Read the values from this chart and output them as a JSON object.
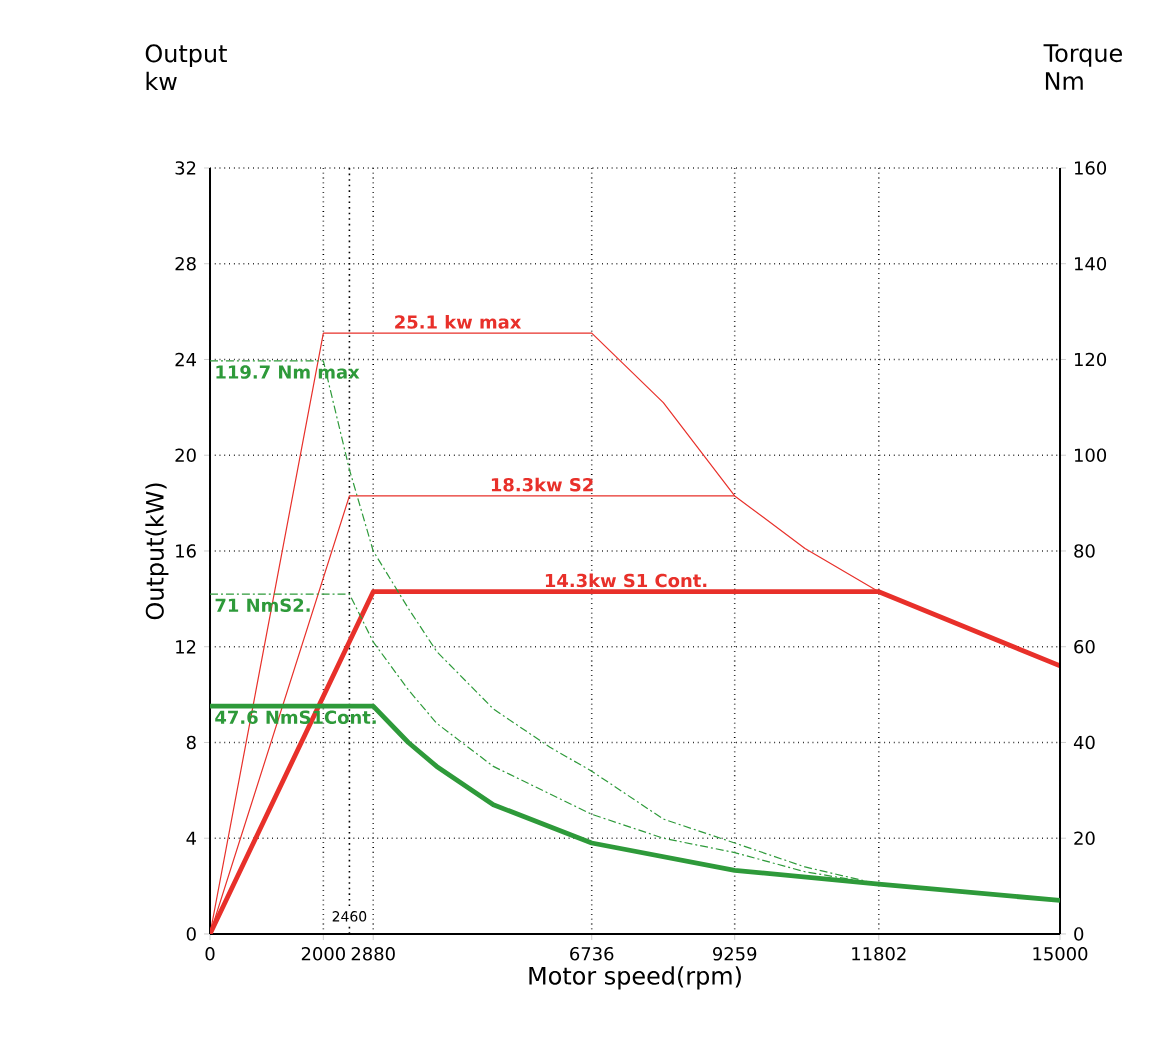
{
  "chart_data": {
    "type": "line",
    "xlabel": "Motor speed(rpm)",
    "ylabel": "Output(kW)",
    "y2label": "Torque Nm",
    "annotations": [
      "Output kw"
    ],
    "xlim": [
      0,
      15000
    ],
    "xticks": [
      0,
      2000,
      2880,
      6736,
      9259,
      11802,
      15000
    ],
    "ylim": [
      0,
      32
    ],
    "yticks": [
      0,
      4,
      8,
      12,
      16,
      20,
      24,
      28,
      32
    ],
    "y2lim": [
      0,
      160
    ],
    "y2ticks": [
      0,
      20,
      40,
      60,
      80,
      100,
      120,
      140,
      160
    ],
    "grid": true,
    "ref_lines": [
      {
        "axis": "x",
        "value": 2460,
        "label": "2460",
        "line_style": "dotted",
        "color": "#000000"
      }
    ],
    "series": [
      {
        "name": "25.1 kw max",
        "color": "#e8302a",
        "line_style": "solid",
        "x": [
          0,
          2000,
          6736,
          8000,
          9259,
          10500,
          11802
        ],
        "values": [
          0,
          25.1,
          25.1,
          22.2,
          18.3,
          16.1,
          14.3
        ]
      },
      {
        "name": "18.3kw S2",
        "color": "#e8302a",
        "line_style": "solid",
        "x": [
          0,
          2460,
          9259
        ],
        "values": [
          0,
          18.3,
          18.3
        ]
      },
      {
        "name": "14.3kw S1 Cont.",
        "color": "#e8302a",
        "line_style": "solid",
        "x": [
          0,
          2880,
          11802,
          15000
        ],
        "values": [
          0,
          14.3,
          14.3,
          11.2
        ]
      },
      {
        "name": "119.7 Nm max",
        "color": "#2e9a3a",
        "line_style": "dashed",
        "axis": "y2",
        "x": [
          0,
          2000,
          2460,
          2880,
          3500,
          4000,
          5000,
          6000,
          6736,
          8000,
          9259,
          10500,
          11802
        ],
        "values": [
          119.7,
          119.7,
          97,
          80,
          68,
          59,
          47,
          39,
          34,
          24,
          19,
          14,
          10.4
        ]
      },
      {
        "name": "71 NmS2.",
        "color": "#2e9a3a",
        "line_style": "dashed",
        "axis": "y2",
        "x": [
          0,
          2460,
          2880,
          3500,
          4000,
          5000,
          6736,
          8000,
          9259,
          10500,
          11802
        ],
        "values": [
          71,
          71,
          61,
          51,
          44,
          35,
          25,
          20,
          17,
          13,
          10.4
        ]
      },
      {
        "name": "47.6 NmS1Cont.",
        "color": "#2e9a3a",
        "line_style": "solid",
        "axis": "y2",
        "x": [
          0,
          2880,
          3500,
          4000,
          5000,
          6736,
          9259,
          11802,
          15000
        ],
        "values": [
          47.6,
          47.6,
          40,
          35,
          27,
          19,
          13.3,
          10.4,
          7
        ]
      }
    ]
  }
}
